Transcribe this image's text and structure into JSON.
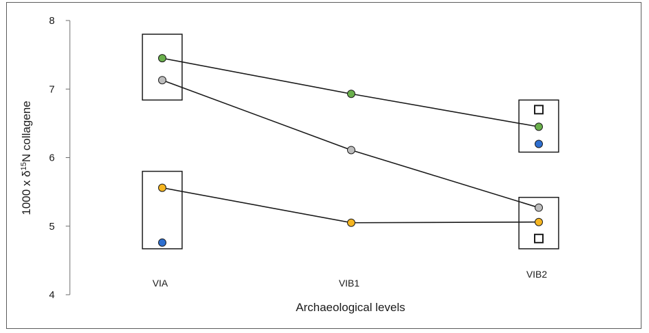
{
  "chart_data": {
    "type": "line",
    "title": "",
    "xlabel": "Archaeological levels",
    "ylabel_parts": {
      "prefix": "1000 x δ",
      "superscript": "15",
      "suffix": "N collagene"
    },
    "ylim": [
      4,
      8
    ],
    "yticks": [
      "4",
      "5",
      "6",
      "7",
      "8"
    ],
    "categories": [
      "VIA",
      "VIB1",
      "VIB2"
    ],
    "grid": false,
    "legend": "none",
    "series": [
      {
        "color": "#6ab04c",
        "values": [
          7.45,
          6.93,
          6.45
        ]
      },
      {
        "color": "#bdbdbd",
        "values": [
          7.13,
          6.11,
          5.27
        ]
      },
      {
        "color": "#f5b520",
        "values": [
          5.56,
          5.05,
          5.06
        ]
      }
    ],
    "extra_points": [
      {
        "category": "VIA",
        "value": 4.76,
        "marker": "circle",
        "color": "#2e6fd0"
      },
      {
        "category": "VIB2",
        "value": 6.2,
        "marker": "circle",
        "color": "#2e6fd0"
      },
      {
        "category": "VIB2",
        "value": 6.7,
        "marker": "square",
        "color": "#ffffff"
      },
      {
        "category": "VIB2",
        "value": 4.82,
        "marker": "square",
        "color": "#ffffff"
      }
    ],
    "groups": [
      {
        "category": "VIA",
        "ymin": 6.84,
        "ymax": 7.8
      },
      {
        "category": "VIA",
        "ymin": 4.67,
        "ymax": 5.8
      },
      {
        "category": "VIB2",
        "ymin": 6.08,
        "ymax": 6.84
      },
      {
        "category": "VIB2",
        "ymin": 4.67,
        "ymax": 5.42
      }
    ]
  }
}
